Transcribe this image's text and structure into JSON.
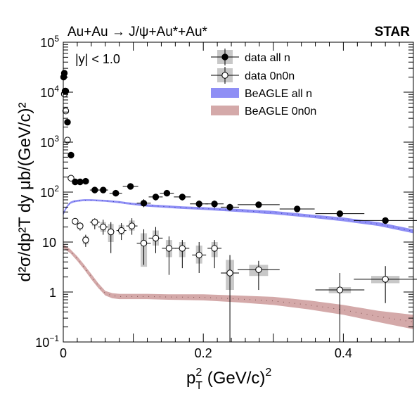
{
  "chart_data": {
    "type": "scatter",
    "title": "Au+Au → J/ψ+Au*+Au*",
    "experiment_label": "STAR",
    "annotation": "|y| < 1.0",
    "xlabel": {
      "main": "p",
      "sup": "2",
      "sub": "T",
      "rest": " (GeV/c)",
      "sup2": "2"
    },
    "ylabel": "d²σ/dp²T dy μb/(GeV/c)²",
    "xlim": [
      0,
      0.5
    ],
    "ylim": [
      0.1,
      100000
    ],
    "y_scale": "log",
    "x_ticks": [
      0,
      0.2,
      0.4
    ],
    "x_tick_labels": [
      "0",
      "0.2",
      "0.4"
    ],
    "y_ticks": [
      {
        "v": 0.1,
        "base": "10",
        "exp": "−1"
      },
      {
        "v": 1,
        "base": "1",
        "exp": ""
      },
      {
        "v": 10,
        "base": "10",
        "exp": ""
      },
      {
        "v": 100,
        "base": "10",
        "exp": "2"
      },
      {
        "v": 1000,
        "base": "10",
        "exp": "3"
      },
      {
        "v": 10000,
        "base": "10",
        "exp": "4"
      },
      {
        "v": 100000,
        "base": "10",
        "exp": "5"
      }
    ],
    "legend": {
      "placement": "top-right",
      "entries": [
        {
          "label": "data all n",
          "kind": "filled-marker"
        },
        {
          "label": "data 0n0n",
          "kind": "open-marker"
        },
        {
          "label": "BeAGLE all n",
          "kind": "band",
          "color": "#8f8ff5"
        },
        {
          "label": "BeAGLE 0n0n",
          "kind": "band",
          "color": "#d4a9a9"
        }
      ]
    },
    "series": [
      {
        "name": "data all n",
        "marker": "filled",
        "color": "#000000",
        "points": [
          {
            "x": 0.0005,
            "y": 20000,
            "xerr": 0.0005,
            "ylo": 18000,
            "yhi": 22000
          },
          {
            "x": 0.0015,
            "y": 24000,
            "xerr": 0.0005,
            "ylo": 21500,
            "yhi": 26500
          },
          {
            "x": 0.0025,
            "y": 10500,
            "xerr": 0.0005,
            "ylo": 9500,
            "yhi": 11500
          },
          {
            "x": 0.0035,
            "y": 10500,
            "xerr": 0.0005,
            "ylo": 9500,
            "yhi": 11500
          },
          {
            "x": 0.006,
            "y": 2500,
            "xerr": 0.002,
            "ylo": 2250,
            "yhi": 2750
          },
          {
            "x": 0.011,
            "y": 550,
            "xerr": 0.003,
            "ylo": 480,
            "yhi": 620
          },
          {
            "x": 0.017,
            "y": 160,
            "xerr": 0.003,
            "ylo": 140,
            "yhi": 180
          },
          {
            "x": 0.024,
            "y": 160,
            "xerr": 0.004,
            "ylo": 140,
            "yhi": 180
          },
          {
            "x": 0.032,
            "y": 165,
            "xerr": 0.004,
            "ylo": 145,
            "yhi": 185
          },
          {
            "x": 0.045,
            "y": 110,
            "xerr": 0.007,
            "ylo": 95,
            "yhi": 125
          },
          {
            "x": 0.057,
            "y": 110,
            "xerr": 0.007,
            "ylo": 95,
            "yhi": 125
          },
          {
            "x": 0.075,
            "y": 95,
            "xerr": 0.009,
            "ylo": 82,
            "yhi": 108
          },
          {
            "x": 0.096,
            "y": 130,
            "xerr": 0.011,
            "ylo": 113,
            "yhi": 147
          },
          {
            "x": 0.115,
            "y": 60,
            "xerr": 0.01,
            "ylo": 50,
            "yhi": 72
          },
          {
            "x": 0.132,
            "y": 80,
            "xerr": 0.01,
            "ylo": 68,
            "yhi": 92
          },
          {
            "x": 0.148,
            "y": 95,
            "xerr": 0.01,
            "ylo": 82,
            "yhi": 108
          },
          {
            "x": 0.17,
            "y": 80,
            "xerr": 0.012,
            "ylo": 68,
            "yhi": 92
          },
          {
            "x": 0.194,
            "y": 58,
            "xerr": 0.013,
            "ylo": 48,
            "yhi": 68
          },
          {
            "x": 0.216,
            "y": 58,
            "xerr": 0.013,
            "ylo": 48,
            "yhi": 68
          },
          {
            "x": 0.238,
            "y": 50,
            "xerr": 0.013,
            "ylo": 42,
            "yhi": 58
          },
          {
            "x": 0.279,
            "y": 56,
            "xerr": 0.03,
            "ylo": 48,
            "yhi": 64
          },
          {
            "x": 0.334,
            "y": 46,
            "xerr": 0.025,
            "ylo": 40,
            "yhi": 52
          },
          {
            "x": 0.395,
            "y": 37,
            "xerr": 0.035,
            "ylo": 32,
            "yhi": 42
          },
          {
            "x": 0.46,
            "y": 27,
            "xerr": 0.045,
            "ylo": 23,
            "yhi": 31
          }
        ]
      },
      {
        "name": "data 0n0n",
        "marker": "open",
        "color": "#000000",
        "points": [
          {
            "x": 0.0015,
            "y": 9200,
            "xerr": 0.0005,
            "ylo": 8200,
            "yhi": 10200,
            "syslo": 8400,
            "syshi": 10000
          },
          {
            "x": 0.0035,
            "y": 4200,
            "xerr": 0.0005,
            "ylo": 3700,
            "yhi": 4700,
            "syslo": 3800,
            "syshi": 4600
          },
          {
            "x": 0.006,
            "y": 1100,
            "xerr": 0.002,
            "ylo": 950,
            "yhi": 1250,
            "syslo": 1000,
            "syshi": 1200
          },
          {
            "x": 0.011,
            "y": 190,
            "xerr": 0.003,
            "ylo": 165,
            "yhi": 215,
            "syslo": 175,
            "syshi": 205
          },
          {
            "x": 0.017,
            "y": 26,
            "xerr": 0.003,
            "ylo": 22,
            "yhi": 30,
            "syslo": 23,
            "syshi": 29
          },
          {
            "x": 0.024,
            "y": 21,
            "xerr": 0.004,
            "ylo": 17,
            "yhi": 25,
            "syslo": 18,
            "syshi": 24
          },
          {
            "x": 0.032,
            "y": 11,
            "xerr": 0.004,
            "ylo": 8,
            "yhi": 14,
            "syslo": 9,
            "syshi": 13
          },
          {
            "x": 0.045,
            "y": 25,
            "xerr": 0.007,
            "ylo": 18,
            "yhi": 30,
            "syslo": 21,
            "syshi": 29
          },
          {
            "x": 0.057,
            "y": 20,
            "xerr": 0.007,
            "ylo": 14,
            "yhi": 28,
            "syslo": 16,
            "syshi": 25
          },
          {
            "x": 0.068,
            "y": 16,
            "xerr": 0.005,
            "ylo": 6,
            "yhi": 25,
            "syslo": 10,
            "syshi": 23
          },
          {
            "x": 0.083,
            "y": 17,
            "xerr": 0.007,
            "ylo": 11,
            "yhi": 24,
            "syslo": 14,
            "syshi": 22
          },
          {
            "x": 0.098,
            "y": 21,
            "xerr": 0.008,
            "ylo": 14,
            "yhi": 30,
            "syslo": 17,
            "syshi": 27
          },
          {
            "x": 0.115,
            "y": 9.5,
            "xerr": 0.01,
            "ylo": 3.5,
            "yhi": 18,
            "syslo": 3.2,
            "syshi": 15
          },
          {
            "x": 0.132,
            "y": 12,
            "xerr": 0.01,
            "ylo": 6,
            "yhi": 20,
            "syslo": 8.5,
            "syshi": 17
          },
          {
            "x": 0.151,
            "y": 7.5,
            "xerr": 0.01,
            "ylo": 2.2,
            "yhi": 13,
            "syslo": 5,
            "syshi": 11
          },
          {
            "x": 0.17,
            "y": 7.5,
            "xerr": 0.01,
            "ylo": 3,
            "yhi": 11,
            "syslo": 5,
            "syshi": 10
          },
          {
            "x": 0.194,
            "y": 5.5,
            "xerr": 0.01,
            "ylo": 2.4,
            "yhi": 10,
            "syslo": 3.7,
            "syshi": 8.5
          },
          {
            "x": 0.216,
            "y": 7.5,
            "xerr": 0.01,
            "ylo": 3,
            "yhi": 11,
            "syslo": 5,
            "syshi": 10
          },
          {
            "x": 0.238,
            "y": 2.4,
            "xerr": 0.013,
            "ylo": 0.1,
            "yhi": 5.5,
            "syslo": 1.1,
            "syshi": 4.4
          },
          {
            "x": 0.279,
            "y": 2.8,
            "xerr": 0.03,
            "ylo": 1.1,
            "yhi": 4.2,
            "syslo": 2.1,
            "syshi": 3.5
          },
          {
            "x": 0.395,
            "y": 1.1,
            "xerr": 0.035,
            "ylo": 0.1,
            "yhi": 2.4,
            "syslo": 0.95,
            "syshi": 1.25
          },
          {
            "x": 0.46,
            "y": 1.8,
            "xerr": 0.045,
            "ylo": 0.6,
            "yhi": 3.3,
            "syslo": 1.5,
            "syshi": 2.1
          }
        ]
      }
    ],
    "bands": [
      {
        "name": "BeAGLE all n",
        "color": "#8f8ff5",
        "x": [
          0,
          0.003,
          0.006,
          0.01,
          0.015,
          0.02,
          0.03,
          0.04,
          0.05,
          0.06,
          0.07,
          0.08,
          0.09,
          0.1,
          0.11,
          0.12,
          0.13,
          0.15,
          0.17,
          0.2,
          0.25,
          0.3,
          0.35,
          0.4,
          0.45,
          0.5
        ],
        "lo": [
          34,
          42,
          50,
          58,
          62,
          64,
          66,
          66,
          65,
          64,
          62,
          60,
          57,
          55,
          53,
          51,
          50,
          48,
          46,
          44,
          40,
          36,
          31,
          26,
          21,
          15
        ],
        "hi": [
          40,
          48,
          56,
          64,
          68,
          70,
          72,
          72,
          71,
          70,
          68,
          66,
          63,
          61,
          59,
          57,
          56,
          54,
          52,
          50,
          46,
          42,
          36,
          31,
          25,
          18
        ]
      },
      {
        "name": "BeAGLE 0n0n",
        "color": "#d4a9a9",
        "x": [
          0,
          0.01,
          0.02,
          0.03,
          0.04,
          0.05,
          0.06,
          0.07,
          0.08,
          0.09,
          0.1,
          0.12,
          0.15,
          0.2,
          0.25,
          0.3,
          0.35,
          0.4,
          0.45,
          0.5
        ],
        "lo": [
          7.5,
          6.0,
          4.2,
          2.8,
          1.8,
          1.2,
          0.85,
          0.75,
          0.72,
          0.72,
          0.72,
          0.72,
          0.7,
          0.68,
          0.62,
          0.55,
          0.45,
          0.35,
          0.25,
          0.18
        ],
        "hi": [
          9.0,
          7.2,
          5.2,
          3.5,
          2.3,
          1.5,
          1.05,
          0.95,
          0.92,
          0.92,
          0.92,
          0.92,
          0.9,
          0.9,
          0.85,
          0.8,
          0.68,
          0.55,
          0.42,
          0.35
        ]
      }
    ],
    "grid": false
  }
}
